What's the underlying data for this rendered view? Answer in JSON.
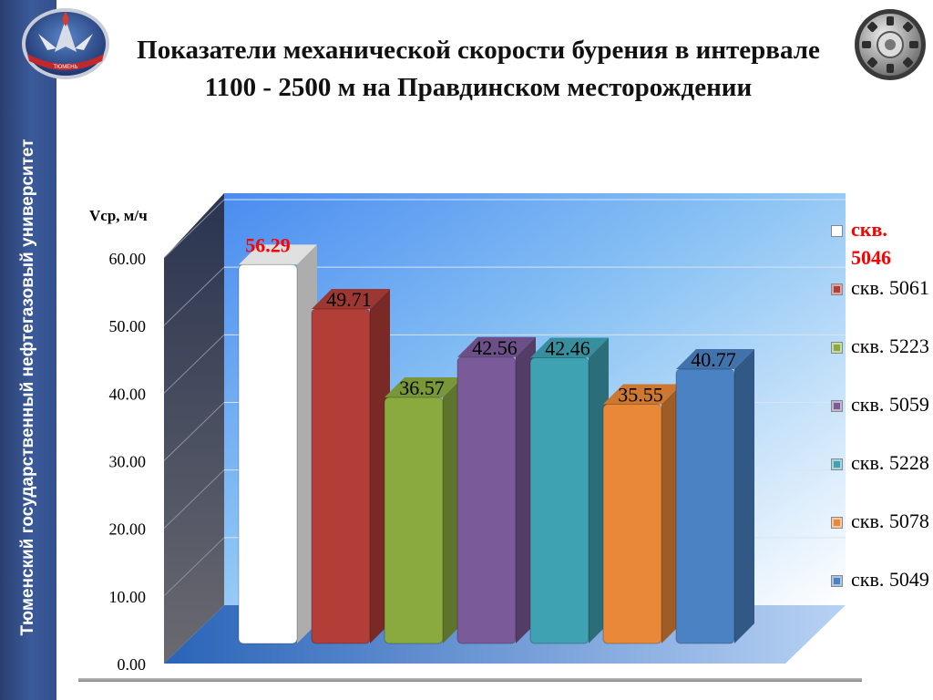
{
  "sidebar": {
    "text": "Тюменский государственный нефтегазовый университет"
  },
  "logos": {
    "left": "university-emblem",
    "right": "drill-bit-emblem"
  },
  "title": "Показатели механической скорости бурения в интервале 1100 - 2500 м на Правдинском месторождении",
  "chart_data": {
    "type": "bar",
    "ylabel": "Vср, м/ч",
    "ylim": [
      0,
      60
    ],
    "yticks": [
      "0.00",
      "10.00",
      "20.00",
      "30.00",
      "40.00",
      "50.00",
      "60.00"
    ],
    "categories": [
      "скв. 5046",
      "скв. 5061",
      "скв. 5223",
      "скв. 5059",
      "скв. 5228",
      "скв. 5078",
      "скв. 5049"
    ],
    "values": [
      56.29,
      49.71,
      36.57,
      42.56,
      42.46,
      35.55,
      40.77
    ],
    "value_labels": [
      "56.29",
      "49.71",
      "36.57",
      "42.56",
      "42.46",
      "35.55",
      "40.77"
    ],
    "colors": [
      "#ffffff",
      "#b23e38",
      "#8aaa40",
      "#7a5a98",
      "#3fa2b2",
      "#e88838",
      "#4a82c4"
    ],
    "highlight_color": "#ff0000",
    "legend_placement": "right",
    "grid": true
  }
}
